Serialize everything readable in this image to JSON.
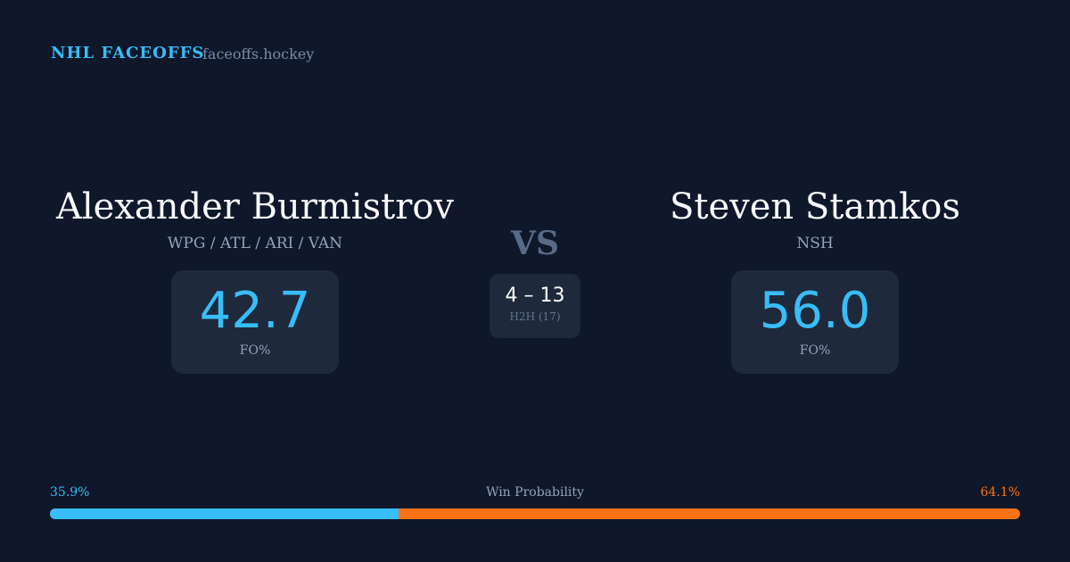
{
  "header": {
    "brand": "NHL FACEOFFS",
    "site": "faceoffs.hockey"
  },
  "left": {
    "name": "Alexander Burmistrov",
    "teams": "WPG / ATL / ARI / VAN",
    "fo": "42.7",
    "fo_label": "FO%"
  },
  "right": {
    "name": "Steven Stamkos",
    "teams": "NSH",
    "fo": "56.0",
    "fo_label": "FO%"
  },
  "center": {
    "vs": "VS",
    "score": "4 – 13",
    "h2h": "H2H (17)"
  },
  "probability": {
    "label": "Win Probability",
    "left": "35.9%",
    "right": "64.1%",
    "left_value": 35.9,
    "colors": {
      "left": "#38bdf8",
      "right": "#f97316"
    }
  }
}
